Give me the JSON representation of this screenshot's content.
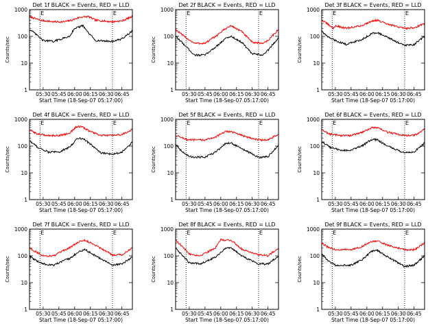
{
  "chart_data": [
    {
      "type": "line",
      "title": "Det 1f BLACK = Events, RED = LLD",
      "marker": "E",
      "xlabel": "Start Time (18-Sep-07 05:17:00)",
      "ylabel": "Counts/sec",
      "yscale": "log",
      "ylim": [
        1,
        1000
      ],
      "yticks": [
        "1",
        "10",
        "100",
        "1000"
      ],
      "xticks": [
        "05:30",
        "05:45",
        "06:00",
        "06:15",
        "06:30",
        "06:45"
      ],
      "xlim": [
        "05:17",
        "06:55"
      ],
      "vlines": [
        "05:27",
        "06:36"
      ],
      "series": [
        {
          "color": "#ff0000",
          "x": [
            "05:17",
            "05:27",
            "05:40",
            "05:50",
            "05:57",
            "06:05",
            "06:13",
            "06:20",
            "06:36",
            "06:45",
            "06:55"
          ],
          "y": [
            550,
            400,
            350,
            350,
            400,
            520,
            550,
            400,
            350,
            380,
            550
          ]
        },
        {
          "color": "#000000",
          "x": [
            "05:17",
            "05:22",
            "05:30",
            "05:40",
            "05:55",
            "06:00",
            "06:08",
            "06:12",
            "06:20",
            "06:36",
            "06:45",
            "06:55"
          ],
          "y": [
            180,
            130,
            70,
            65,
            100,
            200,
            250,
            150,
            70,
            65,
            80,
            160
          ]
        }
      ]
    },
    {
      "type": "line",
      "title": "Det 2f BLACK = Events, RED = LLD",
      "marker": "E",
      "xlabel": "Start Time (18-Sep-07 05:17:00)",
      "ylabel": "Counts/sec",
      "yscale": "log",
      "ylim": [
        1,
        1000
      ],
      "yticks": [
        "1",
        "10",
        "100",
        "1000"
      ],
      "xticks": [
        "05:30",
        "05:45",
        "06:00",
        "06:15",
        "06:30",
        "06:45"
      ],
      "xlim": [
        "05:17",
        "06:55"
      ],
      "vlines": [
        "05:27",
        "06:36"
      ],
      "series": [
        {
          "color": "#ff0000",
          "x": [
            "05:17",
            "05:25",
            "05:35",
            "05:45",
            "05:55",
            "06:05",
            "06:10",
            "06:20",
            "06:30",
            "06:40",
            "06:45",
            "06:55"
          ],
          "y": [
            180,
            100,
            55,
            55,
            100,
            200,
            250,
            150,
            60,
            55,
            70,
            180
          ]
        },
        {
          "color": "#000000",
          "x": [
            "05:17",
            "05:25",
            "05:35",
            "05:45",
            "05:55",
            "06:05",
            "06:10",
            "06:20",
            "06:30",
            "06:40",
            "06:45",
            "06:55"
          ],
          "y": [
            100,
            50,
            20,
            20,
            40,
            85,
            100,
            60,
            22,
            20,
            30,
            90
          ]
        }
      ]
    },
    {
      "type": "line",
      "title": "Det 3f BLACK = Events, RED = LLD",
      "marker": "E",
      "xlabel": "Start Time (18-Sep-07 05:17:00)",
      "ylabel": "Counts/sec",
      "yscale": "log",
      "ylim": [
        1,
        1000
      ],
      "yticks": [
        "1",
        "10",
        "100",
        "1000"
      ],
      "xticks": [
        "05:30",
        "05:45",
        "06:00",
        "06:15",
        "06:30",
        "06:45"
      ],
      "xlim": [
        "05:17",
        "06:55"
      ],
      "vlines": [
        "05:27",
        "06:36"
      ],
      "series": [
        {
          "color": "#ff0000",
          "x": [
            "05:17",
            "05:22",
            "05:28",
            "05:30",
            "05:40",
            "05:55",
            "06:05",
            "06:10",
            "06:20",
            "06:36",
            "06:45",
            "06:55"
          ],
          "y": [
            400,
            300,
            200,
            250,
            200,
            250,
            380,
            400,
            280,
            200,
            210,
            300
          ]
        },
        {
          "color": "#000000",
          "x": [
            "05:17",
            "05:22",
            "05:30",
            "05:40",
            "05:55",
            "06:05",
            "06:10",
            "06:20",
            "06:36",
            "06:45",
            "06:55"
          ],
          "y": [
            160,
            100,
            70,
            50,
            75,
            130,
            140,
            90,
            45,
            50,
            100
          ]
        }
      ]
    },
    {
      "type": "line",
      "title": "Det 4f BLACK = Events, RED = LLD",
      "marker": "E",
      "xlabel": "Start Time (18-Sep-07 05:17:00)",
      "ylabel": "Counts/sec",
      "yscale": "log",
      "ylim": [
        1,
        1000
      ],
      "yticks": [
        "1",
        "10",
        "100",
        "1000"
      ],
      "xticks": [
        "05:30",
        "05:45",
        "06:00",
        "06:15",
        "06:30",
        "06:45"
      ],
      "xlim": [
        "05:17",
        "06:55"
      ],
      "vlines": [
        "05:27",
        "06:36"
      ],
      "series": [
        {
          "color": "#ff0000",
          "x": [
            "05:17",
            "05:25",
            "05:35",
            "05:45",
            "05:55",
            "06:02",
            "06:08",
            "06:15",
            "06:25",
            "06:36",
            "06:45",
            "06:55"
          ],
          "y": [
            400,
            280,
            250,
            250,
            300,
            550,
            500,
            350,
            250,
            250,
            270,
            420
          ]
        },
        {
          "color": "#000000",
          "x": [
            "05:17",
            "05:25",
            "05:35",
            "05:45",
            "05:55",
            "06:03",
            "06:08",
            "06:15",
            "06:25",
            "06:36",
            "06:45",
            "06:55"
          ],
          "y": [
            160,
            90,
            60,
            60,
            90,
            200,
            190,
            120,
            55,
            50,
            60,
            140
          ]
        }
      ]
    },
    {
      "type": "line",
      "title": "Det 5f BLACK = Events, RED = LLD",
      "marker": "E",
      "xlabel": "Start Time (18-Sep-07 05:17:00)",
      "ylabel": "Counts/sec",
      "yscale": "log",
      "ylim": [
        1,
        1000
      ],
      "yticks": [
        "1",
        "10",
        "100",
        "1000"
      ],
      "xticks": [
        "05:30",
        "05:45",
        "06:00",
        "06:15",
        "06:30",
        "06:45"
      ],
      "xlim": [
        "05:17",
        "06:55"
      ],
      "vlines": [
        "05:27",
        "06:36"
      ],
      "series": [
        {
          "color": "#ff0000",
          "x": [
            "05:17",
            "05:22",
            "05:28",
            "05:45",
            "05:55",
            "06:05",
            "06:10",
            "06:20",
            "06:36",
            "06:45",
            "06:55"
          ],
          "y": [
            250,
            220,
            170,
            170,
            220,
            350,
            350,
            250,
            170,
            170,
            280
          ]
        },
        {
          "color": "#000000",
          "x": [
            "05:17",
            "05:22",
            "05:30",
            "05:45",
            "05:55",
            "06:05",
            "06:10",
            "06:20",
            "06:36",
            "06:45",
            "06:55"
          ],
          "y": [
            120,
            70,
            40,
            38,
            60,
            130,
            130,
            80,
            38,
            40,
            110
          ]
        }
      ]
    },
    {
      "type": "line",
      "title": "Det 6f BLACK = Events, RED = LLD",
      "marker": "E",
      "xlabel": "Start Time (18-Sep-07 05:17:00)",
      "ylabel": "Counts/sec",
      "yscale": "log",
      "ylim": [
        1,
        1000
      ],
      "yticks": [
        "1",
        "10",
        "100",
        "1000"
      ],
      "xticks": [
        "05:30",
        "05:45",
        "06:00",
        "06:15",
        "06:30",
        "06:45"
      ],
      "xlim": [
        "05:17",
        "06:55"
      ],
      "vlines": [
        "05:27",
        "06:36"
      ],
      "series": [
        {
          "color": "#ff0000",
          "x": [
            "05:17",
            "05:25",
            "05:35",
            "05:45",
            "05:55",
            "06:05",
            "06:10",
            "06:20",
            "06:36",
            "06:45",
            "06:55"
          ],
          "y": [
            400,
            280,
            250,
            250,
            320,
            500,
            480,
            330,
            250,
            250,
            420
          ]
        },
        {
          "color": "#000000",
          "x": [
            "05:17",
            "05:25",
            "05:35",
            "05:45",
            "05:55",
            "06:05",
            "06:10",
            "06:20",
            "06:36",
            "06:45",
            "06:55"
          ],
          "y": [
            150,
            90,
            70,
            70,
            100,
            180,
            170,
            100,
            55,
            60,
            130
          ]
        }
      ]
    },
    {
      "type": "line",
      "title": "Det 7f BLACK = Events, RED = LLD",
      "marker": "E",
      "xlabel": "Start Time (18-Sep-07 05:17:00)",
      "ylabel": "Counts/sec",
      "yscale": "log",
      "ylim": [
        1,
        1000
      ],
      "yticks": [
        "1",
        "10",
        "100",
        "1000"
      ],
      "xticks": [
        "05:30",
        "05:45",
        "06:00",
        "06:15",
        "06:30",
        "06:45"
      ],
      "xlim": [
        "05:17",
        "06:55"
      ],
      "vlines": [
        "05:27",
        "06:36"
      ],
      "series": [
        {
          "color": "#ff0000",
          "x": [
            "05:17",
            "05:22",
            "05:30",
            "05:40",
            "05:55",
            "06:05",
            "06:10",
            "06:20",
            "06:36",
            "06:45",
            "06:55"
          ],
          "y": [
            200,
            150,
            100,
            100,
            200,
            350,
            380,
            250,
            110,
            110,
            200
          ]
        },
        {
          "color": "#000000",
          "x": [
            "05:17",
            "05:22",
            "05:30",
            "05:40",
            "05:55",
            "06:05",
            "06:10",
            "06:20",
            "06:36",
            "06:45",
            "06:55"
          ],
          "y": [
            100,
            70,
            50,
            45,
            80,
            150,
            170,
            100,
            45,
            50,
            90
          ]
        }
      ]
    },
    {
      "type": "line",
      "title": "Det 8f BLACK = Events, RED = LLD",
      "marker": "E",
      "xlabel": "Start Time (18-Sep-07 05:17:00)",
      "ylabel": "Counts/sec",
      "yscale": "log",
      "ylim": [
        1,
        1000
      ],
      "yticks": [
        "1",
        "10",
        "100",
        "1000"
      ],
      "xticks": [
        "05:30",
        "05:45",
        "06:00",
        "06:15",
        "06:30",
        "06:45"
      ],
      "xlim": [
        "05:17",
        "06:55"
      ],
      "vlines": [
        "05:27",
        "06:36"
      ],
      "series": [
        {
          "color": "#ff0000",
          "x": [
            "05:17",
            "05:22",
            "05:30",
            "05:40",
            "05:55",
            "06:00",
            "06:10",
            "06:20",
            "06:36",
            "06:45",
            "06:55"
          ],
          "y": [
            400,
            250,
            120,
            100,
            200,
            400,
            380,
            180,
            110,
            100,
            200
          ]
        },
        {
          "color": "#000000",
          "x": [
            "05:17",
            "05:22",
            "05:30",
            "05:40",
            "05:55",
            "06:05",
            "06:10",
            "06:20",
            "06:36",
            "06:45",
            "06:55"
          ],
          "y": [
            200,
            120,
            55,
            50,
            90,
            200,
            200,
            100,
            50,
            50,
            100
          ]
        }
      ]
    },
    {
      "type": "line",
      "title": "Det 9f BLACK = Events, RED = LLD",
      "marker": "E",
      "xlabel": "Start Time (18-Sep-07 05:17:00)",
      "ylabel": "Counts/sec",
      "yscale": "log",
      "ylim": [
        1,
        1000
      ],
      "yticks": [
        "1",
        "10",
        "100",
        "1000"
      ],
      "xticks": [
        "05:30",
        "05:45",
        "06:00",
        "06:15",
        "06:30",
        "06:45"
      ],
      "xlim": [
        "05:17",
        "06:55"
      ],
      "vlines": [
        "05:27",
        "06:36"
      ],
      "series": [
        {
          "color": "#ff0000",
          "x": [
            "05:17",
            "05:22",
            "05:30",
            "05:45",
            "05:55",
            "06:05",
            "06:10",
            "06:20",
            "06:36",
            "06:45",
            "06:55"
          ],
          "y": [
            300,
            220,
            170,
            170,
            220,
            350,
            350,
            250,
            170,
            170,
            300
          ]
        },
        {
          "color": "#000000",
          "x": [
            "05:17",
            "05:22",
            "05:30",
            "05:45",
            "05:55",
            "06:05",
            "06:10",
            "06:20",
            "06:36",
            "06:45",
            "06:55"
          ],
          "y": [
            120,
            70,
            45,
            45,
            70,
            150,
            160,
            90,
            40,
            45,
            100
          ]
        }
      ]
    }
  ]
}
